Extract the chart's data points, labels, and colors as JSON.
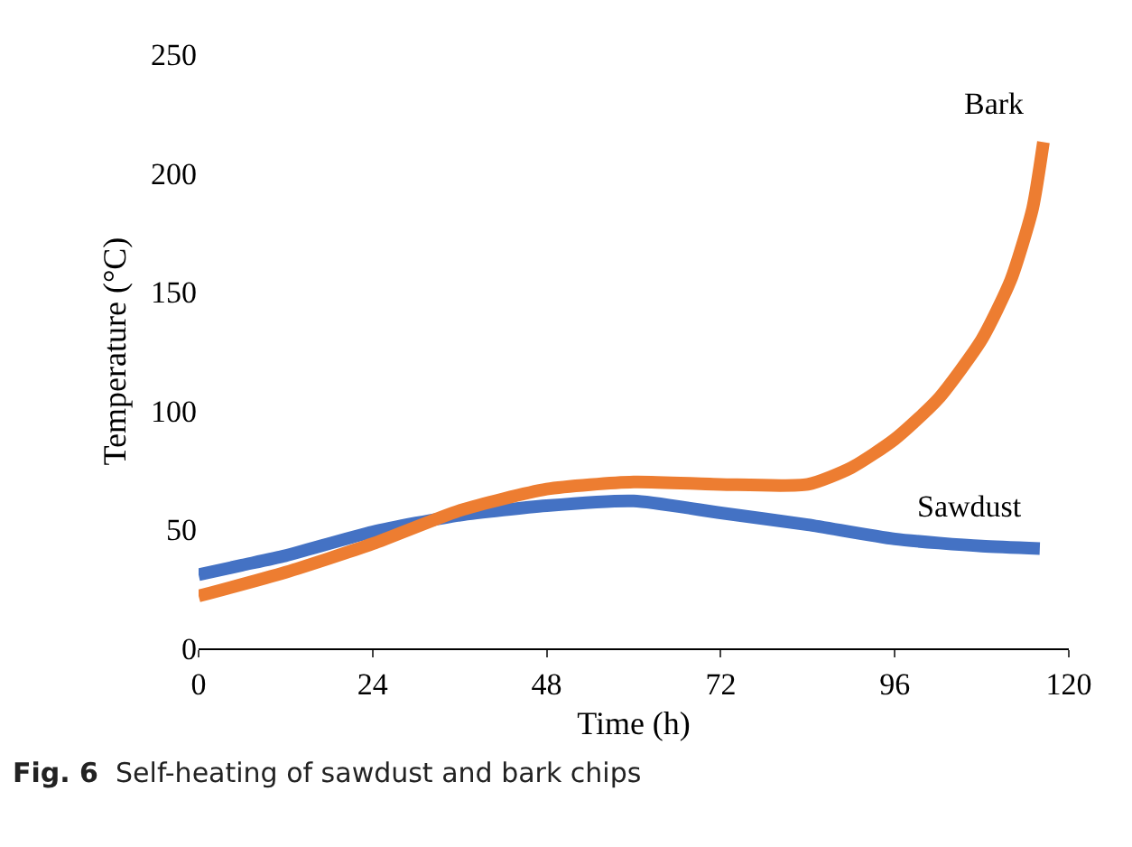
{
  "chart_data": {
    "type": "line",
    "xlabel": "Time (h)",
    "ylabel": "Temperature (°C)",
    "xlim": [
      0,
      120
    ],
    "xticks": [
      0,
      24,
      48,
      72,
      96,
      120
    ],
    "ylim": [
      0,
      250
    ],
    "yticks": [
      0,
      50,
      100,
      150,
      200,
      250
    ],
    "grid": false,
    "legend": false,
    "marker": "none",
    "line_style": "solid",
    "annotations": [
      "Fig. 6  Self-heating of sawdust and bark chips"
    ],
    "series": [
      {
        "name": "Sawdust",
        "color": "#4472c4",
        "x": [
          0,
          6,
          12,
          24,
          36,
          48,
          60,
          72,
          84,
          96,
          108,
          116
        ],
        "values": [
          31,
          35,
          39,
          49,
          56,
          60,
          62,
          57,
          52,
          46,
          43,
          42
        ]
      },
      {
        "name": "Bark",
        "color": "#ed7d31",
        "x": [
          0,
          12,
          24,
          36,
          48,
          60,
          72,
          84,
          90,
          96,
          102,
          108,
          112,
          115,
          116.5
        ],
        "values": [
          22,
          32,
          44,
          58,
          67,
          70,
          69,
          69,
          76,
          88,
          105,
          130,
          155,
          185,
          213
        ]
      }
    ]
  }
}
